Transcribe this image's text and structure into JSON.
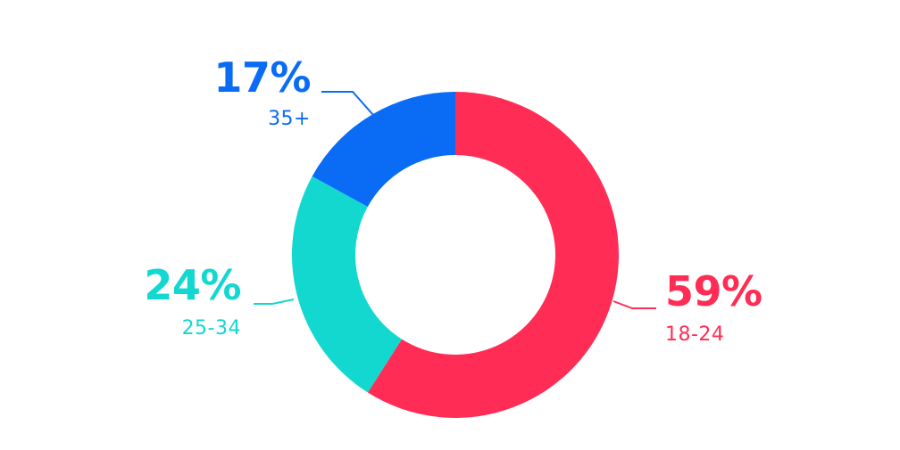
{
  "chart_data": {
    "type": "pie",
    "variant": "donut",
    "legend": "none",
    "slices": [
      {
        "label": "18-24",
        "value": 59,
        "value_label": "59%",
        "color": "#ff2d55"
      },
      {
        "label": "25-34",
        "value": 24,
        "value_label": "24%",
        "color": "#12d8cf"
      },
      {
        "label": "35+",
        "value": 17,
        "value_label": "17%",
        "color": "#0a6cf5"
      }
    ]
  }
}
